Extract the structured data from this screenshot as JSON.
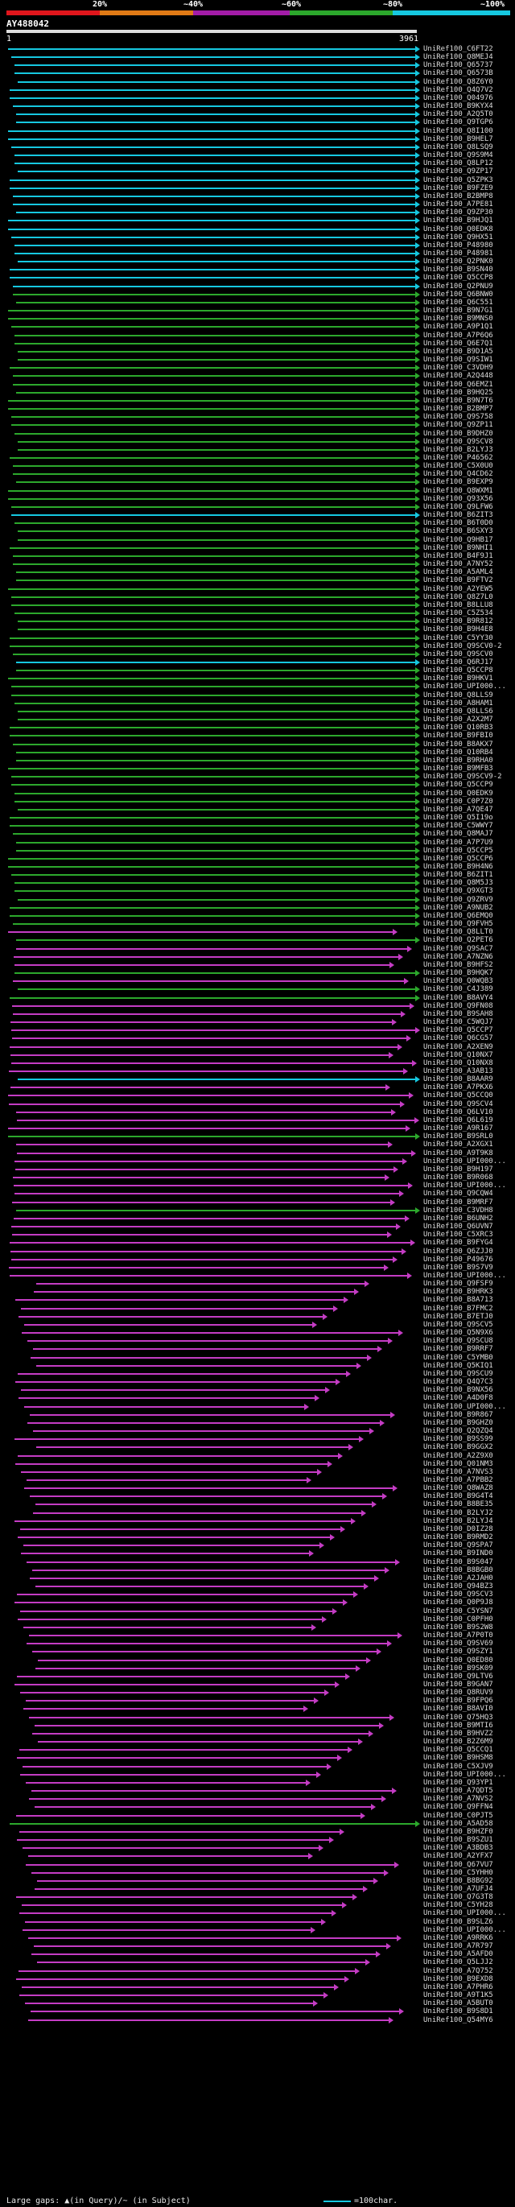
{
  "legend": {
    "percent_labels": [
      "20%",
      "~40%",
      "~60%",
      "~80%",
      "~100%"
    ],
    "segments": [
      {
        "name": "0-20",
        "color": "#e0161c"
      },
      {
        "name": "20-40",
        "color": "#e07a16"
      },
      {
        "name": "40-60",
        "color": "#a31ca8"
      },
      {
        "name": "60-80",
        "color": "#2ca82c"
      },
      {
        "name": "80-100",
        "color": "#16c8e0"
      }
    ]
  },
  "query": {
    "title": "AY488042",
    "start": "1",
    "end": "3961"
  },
  "colors": {
    "cyan": "#16c8e0",
    "green": "#2ca82c",
    "magenta": "#c43cc4",
    "red": "#e0161c"
  },
  "hits": [
    {
      "label": "UniRef100_C6FT22",
      "color": "cyan"
    },
    {
      "label": "UniRef100_Q8MEJ4",
      "color": "cyan"
    },
    {
      "label": "UniRef100_Q65737",
      "color": "cyan"
    },
    {
      "label": "UniRef100_Q6573B",
      "color": "cyan"
    },
    {
      "label": "UniRef100_Q8Z6Y0",
      "color": "cyan"
    },
    {
      "label": "UniRef100_Q4Q7V2",
      "color": "cyan"
    },
    {
      "label": "UniRef100_Q04976",
      "color": "cyan"
    },
    {
      "label": "UniRef100_B9KYX4",
      "color": "cyan"
    },
    {
      "label": "UniRef100_A2Q5T0",
      "color": "cyan"
    },
    {
      "label": "UniRef100_Q9TGP6",
      "color": "cyan"
    },
    {
      "label": "UniRef100_Q8I100",
      "color": "cyan"
    },
    {
      "label": "UniRef100_B9HEL7",
      "color": "cyan"
    },
    {
      "label": "UniRef100_Q8LSQ9",
      "color": "cyan"
    },
    {
      "label": "UniRef100_Q9S9M4",
      "color": "cyan"
    },
    {
      "label": "UniRef100_Q8LP12",
      "color": "cyan"
    },
    {
      "label": "UniRef100_Q9ZP17",
      "color": "cyan"
    },
    {
      "label": "UniRef100_Q5ZPK3",
      "color": "cyan"
    },
    {
      "label": "UniRef100_B9FZE9",
      "color": "cyan"
    },
    {
      "label": "UniRef100_B2BMP8",
      "color": "cyan"
    },
    {
      "label": "UniRef100_A7PE81",
      "color": "cyan"
    },
    {
      "label": "UniRef100_Q9ZP30",
      "color": "cyan"
    },
    {
      "label": "UniRef100_B9HJQ1",
      "color": "cyan"
    },
    {
      "label": "UniRef100_Q0EDK8",
      "color": "cyan"
    },
    {
      "label": "UniRef100_Q9HX51",
      "color": "cyan"
    },
    {
      "label": "UniRef100_P48980",
      "color": "cyan"
    },
    {
      "label": "UniRef100_P48981",
      "color": "cyan"
    },
    {
      "label": "UniRef100_Q2PNK0",
      "color": "cyan"
    },
    {
      "label": "UniRef100_B9SN40",
      "color": "cyan"
    },
    {
      "label": "UniRef100_Q5CCP8",
      "color": "cyan"
    },
    {
      "label": "UniRef100_Q2PNU9",
      "color": "cyan"
    },
    {
      "label": "UniRef100_Q6BNW0",
      "color": "green"
    },
    {
      "label": "UniRef100_Q6C551",
      "color": "green"
    },
    {
      "label": "UniRef100_B9N7G1",
      "color": "green"
    },
    {
      "label": "UniRef100_B9MNS0",
      "color": "green"
    },
    {
      "label": "UniRef100_A9P1Q1",
      "color": "green"
    },
    {
      "label": "UniRef100_A7P6Q6",
      "color": "green"
    },
    {
      "label": "UniRef100_Q6E7Q1",
      "color": "green"
    },
    {
      "label": "UniRef100_B9D1A5",
      "color": "green"
    },
    {
      "label": "UniRef100_Q9SIW1",
      "color": "green"
    },
    {
      "label": "UniRef100_C3VDH9",
      "color": "green"
    },
    {
      "label": "UniRef100_A2Q448",
      "color": "green"
    },
    {
      "label": "UniRef100_Q6EMZ1",
      "color": "green"
    },
    {
      "label": "UniRef100_B9HQ25",
      "color": "green"
    },
    {
      "label": "UniRef100_B9N7T6",
      "color": "green"
    },
    {
      "label": "UniRef100_B2BMP7",
      "color": "green"
    },
    {
      "label": "UniRef100_Q9S758",
      "color": "green"
    },
    {
      "label": "UniRef100_Q9ZP11",
      "color": "green"
    },
    {
      "label": "UniRef100_B9DHZ0",
      "color": "green"
    },
    {
      "label": "UniRef100_Q9SCV8",
      "color": "green"
    },
    {
      "label": "UniRef100_B2LYJ3",
      "color": "green"
    },
    {
      "label": "UniRef100_P46562",
      "color": "green"
    },
    {
      "label": "UniRef100_C5X0U0",
      "color": "green"
    },
    {
      "label": "UniRef100_Q4CD62",
      "color": "green"
    },
    {
      "label": "UniRef100_B9EXP9",
      "color": "green"
    },
    {
      "label": "UniRef100_Q8WXM1",
      "color": "green"
    },
    {
      "label": "UniRef100_Q93X56",
      "color": "green"
    },
    {
      "label": "UniRef100_Q9LFW6",
      "color": "green"
    },
    {
      "label": "UniRef100_B6ZIT3",
      "color": "cyan"
    },
    {
      "label": "UniRef100_B6T0D0",
      "color": "green"
    },
    {
      "label": "UniRef100_B6SXY3",
      "color": "green"
    },
    {
      "label": "UniRef100_Q9HB17",
      "color": "green"
    },
    {
      "label": "UniRef100_B9NHI1",
      "color": "green"
    },
    {
      "label": "UniRef100_B4F9J1",
      "color": "green"
    },
    {
      "label": "UniRef100_A7NY52",
      "color": "green"
    },
    {
      "label": "UniRef100_A5AML4",
      "color": "green"
    },
    {
      "label": "UniRef100_B9FTV2",
      "color": "green"
    },
    {
      "label": "UniRef100_A2YEW5",
      "color": "green"
    },
    {
      "label": "UniRef100_Q8Z7L0",
      "color": "green"
    },
    {
      "label": "UniRef100_B8LLU8",
      "color": "green"
    },
    {
      "label": "UniRef100_C5Z534",
      "color": "green"
    },
    {
      "label": "UniRef100_B9R812",
      "color": "green"
    },
    {
      "label": "UniRef100_B9H4E8",
      "color": "green"
    },
    {
      "label": "UniRef100_C5YY30",
      "color": "green"
    },
    {
      "label": "UniRef100_Q9SCV0-2",
      "color": "green"
    },
    {
      "label": "UniRef100_Q9SCV0",
      "color": "green"
    },
    {
      "label": "UniRef100_Q6RJ17",
      "color": "cyan"
    },
    {
      "label": "UniRef100_Q5CCP8",
      "color": "green"
    },
    {
      "label": "UniRef100_B9HKV1",
      "color": "green"
    },
    {
      "label": "UniRef100_UPI000...",
      "color": "green"
    },
    {
      "label": "UniRef100_Q8LLS9",
      "color": "green"
    },
    {
      "label": "UniRef100_A8HAM1",
      "color": "green"
    },
    {
      "label": "UniRef100_Q8LLS6",
      "color": "green"
    },
    {
      "label": "UniRef100_A2X2M7",
      "color": "green"
    },
    {
      "label": "UniRef100_Q10RB3",
      "color": "green"
    },
    {
      "label": "UniRef100_B9FBI0",
      "color": "green"
    },
    {
      "label": "UniRef100_B8AKX7",
      "color": "green"
    },
    {
      "label": "UniRef100_Q10RB4",
      "color": "green"
    },
    {
      "label": "UniRef100_B9RHA0",
      "color": "green"
    },
    {
      "label": "UniRef100_B9MFB3",
      "color": "green"
    },
    {
      "label": "UniRef100_Q9SCV9-2",
      "color": "green"
    },
    {
      "label": "UniRef100_Q5CCP9",
      "color": "green"
    },
    {
      "label": "UniRef100_Q0EDK9",
      "color": "green"
    },
    {
      "label": "UniRef100_C0P7Z0",
      "color": "green"
    },
    {
      "label": "UniRef100_A7QE47",
      "color": "green"
    },
    {
      "label": "UniRef100_Q5I19o",
      "color": "green"
    },
    {
      "label": "UniRef100_C5WWY7",
      "color": "green"
    },
    {
      "label": "UniRef100_Q8MAJ7",
      "color": "green"
    },
    {
      "label": "UniRef100_A7P7U9",
      "color": "green"
    },
    {
      "label": "UniRef100_Q5CCP5",
      "color": "green"
    },
    {
      "label": "UniRef100_Q5CCP6",
      "color": "green"
    },
    {
      "label": "UniRef100_B9H4N6",
      "color": "green"
    },
    {
      "label": "UniRef100_B6ZIT1",
      "color": "green"
    },
    {
      "label": "UniRef100_Q8M5J3",
      "color": "green"
    },
    {
      "label": "UniRef100_Q9XGT3",
      "color": "green"
    },
    {
      "label": "UniRef100_Q9ZRV9",
      "color": "green"
    },
    {
      "label": "UniRef100_A9NUB2",
      "color": "green"
    },
    {
      "label": "UniRef100_Q6EMQ0",
      "color": "green"
    },
    {
      "label": "UniRef100_Q9FVH5",
      "color": "green"
    },
    {
      "label": "UniRef100_Q8LLT0",
      "color": "magenta"
    },
    {
      "label": "UniRef100_Q2PET6",
      "color": "green"
    },
    {
      "label": "UniRef100_Q9SAC7",
      "color": "magenta"
    },
    {
      "label": "UniRef100_A7NZN6",
      "color": "magenta"
    },
    {
      "label": "UniRef100_B9HFS2",
      "color": "magenta"
    },
    {
      "label": "UniRef100_B9HQK7",
      "color": "green"
    },
    {
      "label": "UniRef100_Q0WQB3",
      "color": "magenta"
    },
    {
      "label": "UniRef100_C4J389",
      "color": "green"
    },
    {
      "label": "UniRef100_B8AVY4",
      "color": "green"
    },
    {
      "label": "UniRef100_Q9FN08",
      "color": "magenta"
    },
    {
      "label": "UniRef100_B9SAH8",
      "color": "magenta"
    },
    {
      "label": "UniRef100_C5WQJ7",
      "color": "magenta"
    },
    {
      "label": "UniRef100_Q5CCP7",
      "color": "magenta"
    },
    {
      "label": "UniRef100_Q6CG57",
      "color": "magenta"
    },
    {
      "label": "UniRef100_A2XEN9",
      "color": "magenta"
    },
    {
      "label": "UniRef100_Q10NX7",
      "color": "magenta"
    },
    {
      "label": "UniRef100_Q10NX8",
      "color": "magenta"
    },
    {
      "label": "UniRef100_A3AB13",
      "color": "magenta"
    },
    {
      "label": "UniRef100_B8AAR9",
      "color": "cyan"
    },
    {
      "label": "UniRef100_A7PKX6",
      "color": "magenta"
    },
    {
      "label": "UniRef100_Q5CCQ0",
      "color": "magenta"
    },
    {
      "label": "UniRef100_Q9SCV4",
      "color": "magenta"
    },
    {
      "label": "UniRef100_Q6LV10",
      "color": "magenta"
    },
    {
      "label": "UniRef100_Q6L619",
      "color": "magenta"
    },
    {
      "label": "UniRef100_A9R167",
      "color": "magenta"
    },
    {
      "label": "UniRef100_B9SRL0",
      "color": "green"
    },
    {
      "label": "UniRef100_A2XGX1",
      "color": "magenta"
    },
    {
      "label": "UniRef100_A9T9K8",
      "color": "magenta"
    },
    {
      "label": "UniRef100_UPI000...",
      "color": "magenta"
    },
    {
      "label": "UniRef100_B9H197",
      "color": "magenta"
    },
    {
      "label": "UniRef100_B9R068",
      "color": "magenta"
    },
    {
      "label": "UniRef100_UPI000...",
      "color": "magenta"
    },
    {
      "label": "UniRef100_Q9CQW4",
      "color": "magenta"
    },
    {
      "label": "UniRef100_B9MRF7",
      "color": "magenta"
    },
    {
      "label": "UniRef100_C3VDH8",
      "color": "green"
    },
    {
      "label": "UniRef100_B6UNH2",
      "color": "magenta"
    },
    {
      "label": "UniRef100_Q6UVN7",
      "color": "magenta"
    },
    {
      "label": "UniRef100_C5XRC3",
      "color": "magenta"
    },
    {
      "label": "UniRef100_B9FYG4",
      "color": "magenta"
    },
    {
      "label": "UniRef100_Q6ZJJ0",
      "color": "magenta"
    },
    {
      "label": "UniRef100_P49676",
      "color": "magenta"
    },
    {
      "label": "UniRef100_B9S7V9",
      "color": "magenta"
    },
    {
      "label": "UniRef100_UPI000...",
      "color": "magenta"
    },
    {
      "label": "UniRef100_Q9FSF9",
      "color": "magenta"
    },
    {
      "label": "UniRef100_B9HRK3",
      "color": "magenta"
    },
    {
      "label": "UniRef100_B8A713",
      "color": "magenta"
    },
    {
      "label": "UniRef100_B7FMC2",
      "color": "magenta"
    },
    {
      "label": "UniRef100_B7ETJ0",
      "color": "magenta"
    },
    {
      "label": "UniRef100_Q9SCV5",
      "color": "magenta"
    },
    {
      "label": "UniRef100_Q5N9X6",
      "color": "magenta"
    },
    {
      "label": "UniRef100_Q9SCU8",
      "color": "magenta"
    },
    {
      "label": "UniRef100_B9RRF7",
      "color": "magenta"
    },
    {
      "label": "UniRef100_C5YMB0",
      "color": "magenta"
    },
    {
      "label": "UniRef100_Q5KIQ1",
      "color": "magenta"
    },
    {
      "label": "UniRef100_Q9SCU9",
      "color": "magenta"
    },
    {
      "label": "UniRef100_Q4Q7C3",
      "color": "magenta"
    },
    {
      "label": "UniRef100_B9NX56",
      "color": "magenta"
    },
    {
      "label": "UniRef100_A4D0F8",
      "color": "magenta"
    },
    {
      "label": "UniRef100_UPI000...",
      "color": "magenta"
    },
    {
      "label": "UniRef100_B9R867",
      "color": "magenta"
    },
    {
      "label": "UniRef100_B9GHZ0",
      "color": "magenta"
    },
    {
      "label": "UniRef100_Q2QZQ4",
      "color": "magenta"
    },
    {
      "label": "UniRef100_B9SS99",
      "color": "magenta"
    },
    {
      "label": "UniRef100_B9GGX2",
      "color": "magenta"
    },
    {
      "label": "UniRef100_A2Z9X0",
      "color": "magenta"
    },
    {
      "label": "UniRef100_Q01NM3",
      "color": "magenta"
    },
    {
      "label": "UniRef100_A7NVS3",
      "color": "magenta"
    },
    {
      "label": "UniRef100_A7PBB2",
      "color": "magenta"
    },
    {
      "label": "UniRef100_Q8WAZ8",
      "color": "magenta"
    },
    {
      "label": "UniRef100_B9G4T4",
      "color": "magenta"
    },
    {
      "label": "UniRef100_B8BE35",
      "color": "magenta"
    },
    {
      "label": "UniRef100_B2LYJ2",
      "color": "magenta"
    },
    {
      "label": "UniRef100_B2LYJ4",
      "color": "magenta"
    },
    {
      "label": "UniRef100_D0IZ28",
      "color": "magenta"
    },
    {
      "label": "UniRef100_B9RMD2",
      "color": "magenta"
    },
    {
      "label": "UniRef100_Q9SPA7",
      "color": "magenta"
    },
    {
      "label": "UniRef100_B9IND0",
      "color": "magenta"
    },
    {
      "label": "UniRef100_B9S047",
      "color": "magenta"
    },
    {
      "label": "UniRef100_B8BGB0",
      "color": "magenta"
    },
    {
      "label": "UniRef100_A2JAH0",
      "color": "magenta"
    },
    {
      "label": "UniRef100_Q94BZ3",
      "color": "magenta"
    },
    {
      "label": "UniRef100_Q9SCV3",
      "color": "magenta"
    },
    {
      "label": "UniRef100_Q0P9J8",
      "color": "magenta"
    },
    {
      "label": "UniRef100_C5YSN7",
      "color": "magenta"
    },
    {
      "label": "UniRef100_C0PFH0",
      "color": "magenta"
    },
    {
      "label": "UniRef100_B9S2W8",
      "color": "magenta"
    },
    {
      "label": "UniRef100_A7P0T0",
      "color": "magenta"
    },
    {
      "label": "UniRef100_Q9SV69",
      "color": "magenta"
    },
    {
      "label": "UniRef100_Q9SZY1",
      "color": "magenta"
    },
    {
      "label": "UniRef100_Q0ED80",
      "color": "magenta"
    },
    {
      "label": "UniRef100_B9SK09",
      "color": "magenta"
    },
    {
      "label": "UniRef100_Q9LTV6",
      "color": "magenta"
    },
    {
      "label": "UniRef100_B9GAN7",
      "color": "magenta"
    },
    {
      "label": "UniRef100_Q8RUV9",
      "color": "magenta"
    },
    {
      "label": "UniRef100_B9FPQ6",
      "color": "magenta"
    },
    {
      "label": "UniRef100_B8AVI0",
      "color": "magenta"
    },
    {
      "label": "UniRef100_Q75HQ3",
      "color": "magenta"
    },
    {
      "label": "UniRef100_B9MTI6",
      "color": "magenta"
    },
    {
      "label": "UniRef100_B9HVZ2",
      "color": "magenta"
    },
    {
      "label": "UniRef100_B2Z6M9",
      "color": "magenta"
    },
    {
      "label": "UniRef100_Q5CCQ1",
      "color": "magenta"
    },
    {
      "label": "UniRef100_B9HSM8",
      "color": "magenta"
    },
    {
      "label": "UniRef100_C5XJV9",
      "color": "magenta"
    },
    {
      "label": "UniRef100_UPI000...",
      "color": "magenta"
    },
    {
      "label": "UniRef100_Q93YP1",
      "color": "magenta"
    },
    {
      "label": "UniRef100_A7QDT5",
      "color": "magenta"
    },
    {
      "label": "UniRef100_A7NVS2",
      "color": "magenta"
    },
    {
      "label": "UniRef100_Q9FFN4",
      "color": "magenta"
    },
    {
      "label": "UniRef100_C0PJT5",
      "color": "magenta"
    },
    {
      "label": "UniRef100_A5AD58",
      "color": "green"
    },
    {
      "label": "UniRef100_B9HZF0",
      "color": "magenta"
    },
    {
      "label": "UniRef100_B9SZU1",
      "color": "magenta"
    },
    {
      "label": "UniRef100_A3BDB3",
      "color": "magenta"
    },
    {
      "label": "UniRef100_A2YFX7",
      "color": "magenta"
    },
    {
      "label": "UniRef100_Q67VU7",
      "color": "magenta"
    },
    {
      "label": "UniRef100_C5YHH0",
      "color": "magenta"
    },
    {
      "label": "UniRef100_B8BG92",
      "color": "magenta"
    },
    {
      "label": "UniRef100_A7UFJ4",
      "color": "magenta"
    },
    {
      "label": "UniRef100_Q7G3T8",
      "color": "magenta"
    },
    {
      "label": "UniRef100_C5YH28",
      "color": "magenta"
    },
    {
      "label": "UniRef100_UPI000...",
      "color": "magenta"
    },
    {
      "label": "UniRef100_B9SLZ6",
      "color": "magenta"
    },
    {
      "label": "UniRef100_UPI000...",
      "color": "magenta"
    },
    {
      "label": "UniRef100_A9RRK6",
      "color": "magenta"
    },
    {
      "label": "UniRef100_A7R797",
      "color": "magenta"
    },
    {
      "label": "UniRef100_A5AFD0",
      "color": "magenta"
    },
    {
      "label": "UniRef100_Q5LJJ2",
      "color": "magenta"
    },
    {
      "label": "UniRef100_A7Q752",
      "color": "magenta"
    },
    {
      "label": "UniRef100_B9EXD8",
      "color": "magenta"
    },
    {
      "label": "UniRef100_A7PHR6",
      "color": "magenta"
    },
    {
      "label": "UniRef100_A9T1K5",
      "color": "magenta"
    },
    {
      "label": "UniRef100_A5BUT0",
      "color": "magenta"
    },
    {
      "label": "UniRef100_B9S8D1",
      "color": "magenta"
    },
    {
      "label": "UniRef100_Q54MY6",
      "color": "magenta"
    }
  ],
  "footer": {
    "gap_text": "Large gaps: ▲(in Query)/~ (in Subject)",
    "scale_text": "=100char."
  }
}
